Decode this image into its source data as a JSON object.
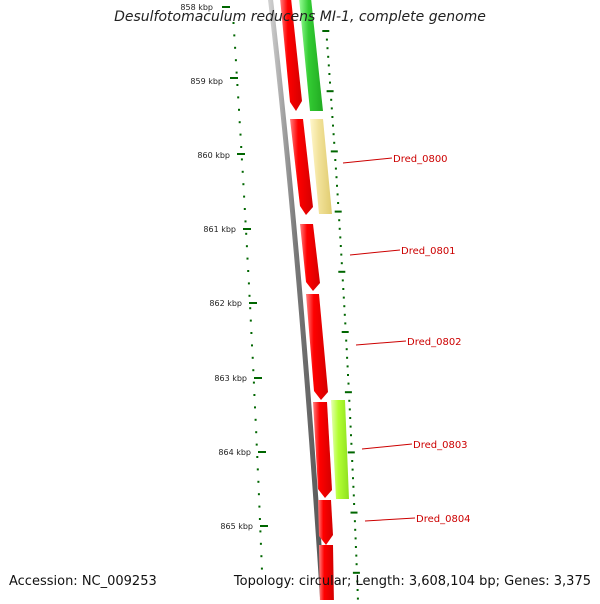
{
  "title": "Desulfotomaculum reducens MI-1, complete genome",
  "footer": {
    "accession": "Accession: NC_009253",
    "summary": "Topology: circular; Length: 3,608,104 bp; Genes: 3,375"
  },
  "colors": {
    "forward_gene": "#ff0000",
    "reverse_gene_dark": "#33cc33",
    "reverse_gene_light": "#b3ff33",
    "reverse_gene_pale": "#f2e29a",
    "backbone": "#777777",
    "tick": "#006600",
    "scale_text": "#222222",
    "gene_label": "#cc0000"
  },
  "scale": {
    "ticks": [
      {
        "label": "858 kbp"
      },
      {
        "label": "859 kbp"
      },
      {
        "label": "860 kbp"
      },
      {
        "label": "861 kbp"
      },
      {
        "label": "862 kbp"
      },
      {
        "label": "863 kbp"
      },
      {
        "label": "864 kbp"
      },
      {
        "label": "865 kbp"
      }
    ]
  },
  "genes": {
    "labels": [
      {
        "name": "Dred_0800"
      },
      {
        "name": "Dred_0801"
      },
      {
        "name": "Dred_0802"
      },
      {
        "name": "Dred_0803"
      },
      {
        "name": "Dred_0804"
      }
    ]
  }
}
